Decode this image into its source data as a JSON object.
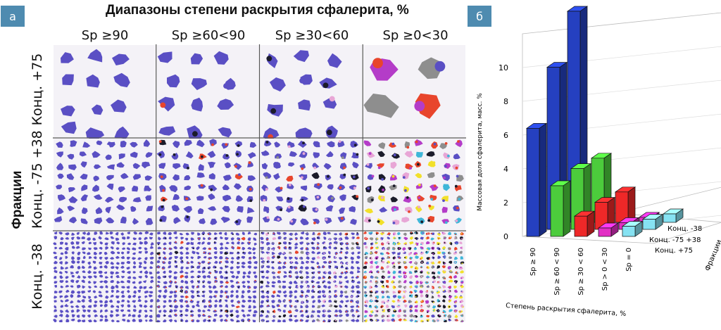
{
  "panel_a": {
    "badge": "а",
    "title": "Диапазоны степени раскрытия сфалерита, %",
    "side_title": "Фракции",
    "columns": [
      "Sp ≥90",
      "Sp ≥60<90",
      "Sp ≥30<60",
      "Sp ≥0<30"
    ],
    "rows": [
      "Конц. +75",
      "Конц. -75 +38",
      "Конц. -38"
    ],
    "colors": {
      "sphalerite": "#5a4fc4",
      "dark": "#1b1b2a",
      "red": "#e8452c",
      "pink": "#e8a6d6",
      "yellow": "#f2e02a",
      "gray": "#8e8e8e",
      "cyan": "#3fb6d8",
      "magenta": "#b43cc8"
    }
  },
  "panel_b": {
    "badge": "б"
  },
  "chart_data": {
    "type": "bar3d",
    "ylabel": "Массовая доля сфалерита, масс. %",
    "xlabel": "Степень раскрытия сфалерита, %",
    "depth_label": "Фракции",
    "yticks": [
      0,
      2,
      4,
      6,
      8,
      10
    ],
    "ylim": [
      0,
      12
    ],
    "categories": [
      "Sp ≥ 90",
      "Sp ≥ 60 < 90",
      "Sp ≥ 30 < 60",
      "Sp > 0 < 30",
      "Sp = 0"
    ],
    "series": [
      {
        "name": "Конц. +75",
        "values": [
          6.4,
          3.0,
          1.2,
          0.5,
          0.6
        ]
      },
      {
        "name": "Конц. -75 +38",
        "values": [
          9.6,
          3.6,
          1.6,
          0.4,
          0.6
        ]
      },
      {
        "name": "Конц. -38",
        "values": [
          12.5,
          3.8,
          1.8,
          0.3,
          0.5
        ]
      }
    ],
    "category_colors": [
      "#2540c0",
      "#4ccc3c",
      "#ee2828",
      "#e22ec4",
      "#86e2f2"
    ]
  }
}
